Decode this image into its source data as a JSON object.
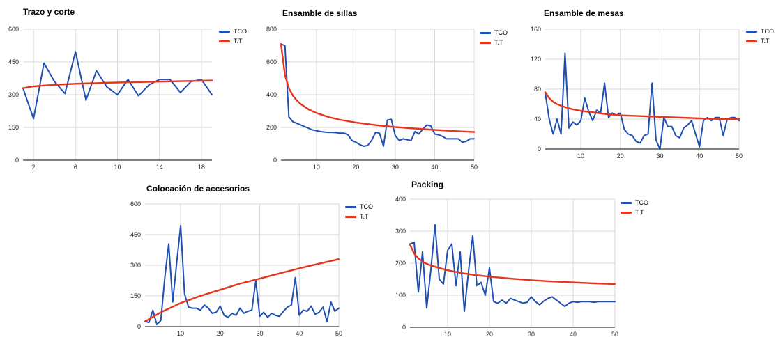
{
  "colors": {
    "tco": "#1f4fb3",
    "tt": "#e8341c",
    "grid": "#d9d9d9",
    "axis": "#333333"
  },
  "legend": {
    "tco": "TCO",
    "tt": "T.T"
  },
  "chart_data": [
    {
      "type": "line",
      "title": "Trazo y corte",
      "xlim": [
        1,
        19
      ],
      "xticks": [
        2,
        6,
        10,
        14,
        18
      ],
      "ylim": [
        0,
        600
      ],
      "yticks": [
        0,
        150,
        300,
        450,
        600
      ],
      "grid": true,
      "legend_position": "right",
      "series": [
        {
          "name": "TCO",
          "x": [
            1,
            2,
            3,
            4,
            5,
            6,
            7,
            8,
            9,
            10,
            11,
            12,
            13,
            14,
            15,
            16,
            17,
            18,
            19
          ],
          "values": [
            330,
            190,
            445,
            360,
            305,
            497,
            275,
            410,
            335,
            300,
            370,
            295,
            345,
            370,
            370,
            310,
            360,
            370,
            300
          ]
        },
        {
          "name": "T.T",
          "x": [
            1,
            2,
            3,
            4,
            5,
            6,
            7,
            8,
            9,
            10,
            11,
            12,
            13,
            14,
            15,
            16,
            17,
            18,
            19
          ],
          "values": [
            330,
            338,
            342,
            345,
            348,
            350,
            352,
            353,
            355,
            356,
            357,
            358,
            359,
            360,
            361,
            362,
            363,
            364,
            365
          ]
        }
      ]
    },
    {
      "type": "line",
      "title": "Ensamble de sillas",
      "xlim": [
        1,
        50
      ],
      "xticks": [
        10,
        20,
        30,
        40,
        50
      ],
      "ylim": [
        0,
        800
      ],
      "yticks": [
        0,
        200,
        400,
        600,
        800
      ],
      "grid": true,
      "legend_position": "right",
      "series": [
        {
          "name": "TCO",
          "x": [
            1,
            2,
            3,
            4,
            5,
            6,
            7,
            8,
            9,
            10,
            11,
            12,
            13,
            14,
            15,
            16,
            17,
            18,
            19,
            20,
            21,
            22,
            23,
            24,
            25,
            26,
            27,
            28,
            29,
            30,
            31,
            32,
            33,
            34,
            35,
            36,
            37,
            38,
            39,
            40,
            41,
            42,
            43,
            44,
            45,
            46,
            47,
            48,
            49,
            50
          ],
          "values": [
            710,
            700,
            265,
            235,
            225,
            215,
            205,
            195,
            185,
            180,
            175,
            172,
            170,
            170,
            168,
            165,
            165,
            155,
            120,
            110,
            95,
            85,
            90,
            120,
            170,
            165,
            85,
            245,
            250,
            150,
            120,
            130,
            125,
            120,
            175,
            160,
            190,
            215,
            210,
            160,
            155,
            145,
            130,
            130,
            130,
            130,
            110,
            115,
            130,
            130
          ]
        },
        {
          "name": "T.T",
          "x": [
            1,
            2,
            3,
            4,
            5,
            6,
            8,
            10,
            13,
            16,
            20,
            25,
            30,
            35,
            40,
            45,
            50
          ],
          "values": [
            710,
            520,
            440,
            395,
            365,
            343,
            310,
            288,
            264,
            247,
            230,
            214,
            202,
            193,
            185,
            178,
            172
          ]
        }
      ]
    },
    {
      "type": "line",
      "title": "Ensamble de mesas",
      "xlim": [
        1,
        50
      ],
      "xticks": [
        10,
        20,
        30,
        40,
        50
      ],
      "ylim": [
        0,
        160
      ],
      "yticks": [
        0,
        40,
        80,
        120,
        160
      ],
      "grid": true,
      "legend_position": "right",
      "series": [
        {
          "name": "TCO",
          "x": [
            1,
            2,
            3,
            4,
            5,
            6,
            7,
            8,
            9,
            10,
            11,
            12,
            13,
            14,
            15,
            16,
            17,
            18,
            19,
            20,
            21,
            22,
            23,
            24,
            25,
            26,
            27,
            28,
            29,
            30,
            31,
            32,
            33,
            34,
            35,
            36,
            37,
            38,
            39,
            40,
            41,
            42,
            43,
            44,
            45,
            46,
            47,
            48,
            49,
            50
          ],
          "values": [
            75,
            40,
            20,
            40,
            20,
            128,
            28,
            36,
            32,
            38,
            68,
            50,
            38,
            52,
            48,
            88,
            42,
            48,
            45,
            48,
            26,
            20,
            18,
            10,
            8,
            18,
            20,
            88,
            12,
            0,
            42,
            30,
            30,
            18,
            15,
            28,
            32,
            38,
            20,
            3,
            38,
            42,
            38,
            42,
            42,
            18,
            40,
            42,
            42,
            38
          ]
        },
        {
          "name": "T.T",
          "x": [
            1,
            2,
            3,
            4,
            5,
            6,
            8,
            10,
            13,
            16,
            20,
            25,
            30,
            35,
            40,
            45,
            50
          ],
          "values": [
            76,
            68,
            63,
            60,
            58,
            56,
            53,
            51,
            49,
            47,
            45,
            44,
            43,
            42,
            41,
            40,
            40
          ]
        }
      ]
    },
    {
      "type": "line",
      "title": "Colocación de accesorios",
      "xlim": [
        1,
        50
      ],
      "xticks": [
        10,
        20,
        30,
        40,
        50
      ],
      "ylim": [
        0,
        600
      ],
      "yticks": [
        0,
        150,
        300,
        450,
        600
      ],
      "grid": true,
      "legend_position": "right",
      "series": [
        {
          "name": "TCO",
          "x": [
            1,
            2,
            3,
            4,
            5,
            6,
            7,
            8,
            9,
            10,
            11,
            12,
            13,
            14,
            15,
            16,
            17,
            18,
            19,
            20,
            21,
            22,
            23,
            24,
            25,
            26,
            27,
            28,
            29,
            30,
            31,
            32,
            33,
            34,
            35,
            36,
            37,
            38,
            39,
            40,
            41,
            42,
            43,
            44,
            45,
            46,
            47,
            48,
            49,
            50
          ],
          "values": [
            25,
            20,
            80,
            10,
            30,
            240,
            405,
            120,
            310,
            495,
            160,
            95,
            90,
            90,
            80,
            105,
            90,
            65,
            70,
            100,
            55,
            45,
            65,
            55,
            90,
            65,
            75,
            80,
            225,
            50,
            70,
            45,
            65,
            55,
            50,
            75,
            95,
            105,
            240,
            55,
            80,
            75,
            100,
            60,
            70,
            95,
            25,
            120,
            75,
            90
          ]
        },
        {
          "name": "T.T",
          "x": [
            1,
            5,
            10,
            15,
            20,
            25,
            30,
            35,
            40,
            45,
            50
          ],
          "values": [
            25,
            70,
            115,
            150,
            180,
            210,
            235,
            260,
            285,
            308,
            330
          ]
        }
      ]
    },
    {
      "type": "line",
      "title": "Packing",
      "xlim": [
        1,
        50
      ],
      "xticks": [
        10,
        20,
        30,
        40,
        50
      ],
      "ylim": [
        0,
        400
      ],
      "yticks": [
        0,
        100,
        200,
        300,
        400
      ],
      "grid": true,
      "legend_position": "right",
      "series": [
        {
          "name": "TCO",
          "x": [
            1,
            2,
            3,
            4,
            5,
            6,
            7,
            8,
            9,
            10,
            11,
            12,
            13,
            14,
            15,
            16,
            17,
            18,
            19,
            20,
            21,
            22,
            23,
            24,
            25,
            26,
            27,
            28,
            29,
            30,
            31,
            32,
            33,
            34,
            35,
            36,
            37,
            38,
            39,
            40,
            41,
            42,
            43,
            44,
            45,
            46,
            47,
            48,
            49,
            50
          ],
          "values": [
            260,
            265,
            110,
            235,
            60,
            180,
            320,
            150,
            135,
            240,
            260,
            130,
            235,
            50,
            175,
            285,
            130,
            140,
            100,
            185,
            80,
            75,
            85,
            75,
            90,
            85,
            80,
            75,
            78,
            95,
            80,
            70,
            82,
            90,
            95,
            85,
            75,
            65,
            75,
            80,
            78,
            80,
            80,
            80,
            78,
            80,
            80,
            80,
            80,
            80
          ]
        },
        {
          "name": "T.T",
          "x": [
            1,
            2,
            3,
            4,
            5,
            6,
            8,
            10,
            13,
            16,
            20,
            25,
            30,
            35,
            40,
            45,
            50
          ],
          "values": [
            258,
            230,
            215,
            205,
            198,
            193,
            185,
            178,
            170,
            164,
            158,
            152,
            147,
            143,
            140,
            137,
            135
          ]
        }
      ]
    }
  ]
}
